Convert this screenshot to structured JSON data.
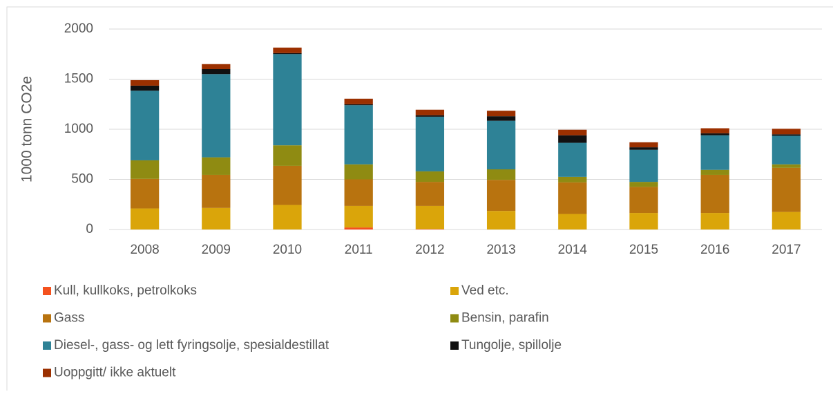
{
  "chart_data": {
    "type": "stacked_bar",
    "y_label": "1000 tonn CO2e",
    "categories": [
      "2008",
      "2009",
      "2010",
      "2011",
      "2012",
      "2013",
      "2014",
      "2015",
      "2016",
      "2017"
    ],
    "series": [
      {
        "name": "Kull, kullkoks, petrolkoks",
        "color": "#f4511e",
        "values": [
          0,
          0,
          0,
          20,
          5,
          0,
          0,
          0,
          0,
          0
        ]
      },
      {
        "name": "Ved etc.",
        "color": "#daa50a",
        "values": [
          210,
          215,
          245,
          215,
          230,
          185,
          155,
          165,
          165,
          175
        ]
      },
      {
        "name": "Gass",
        "color": "#b8730f",
        "values": [
          295,
          330,
          390,
          265,
          240,
          310,
          315,
          260,
          380,
          440
        ]
      },
      {
        "name": "Bensin, parafin",
        "color": "#8f8b12",
        "values": [
          185,
          175,
          205,
          150,
          105,
          105,
          55,
          50,
          50,
          35
        ]
      },
      {
        "name": "Diesel-, gass- og lett fyringsolje, spesialdestillat",
        "color": "#2e8296",
        "values": [
          695,
          830,
          910,
          590,
          545,
          485,
          340,
          320,
          345,
          285
        ]
      },
      {
        "name": "Tungolje, spillolje",
        "color": "#111111",
        "values": [
          50,
          50,
          10,
          10,
          15,
          45,
          75,
          25,
          20,
          15
        ]
      },
      {
        "name": "Uoppgitt/ ikke aktuelt",
        "color": "#9b3000",
        "values": [
          55,
          50,
          55,
          55,
          55,
          55,
          55,
          50,
          50,
          55
        ]
      }
    ],
    "ylim": [
      0,
      2000
    ],
    "yticks": [
      0,
      500,
      1000,
      1500,
      2000
    ],
    "grid": true
  }
}
